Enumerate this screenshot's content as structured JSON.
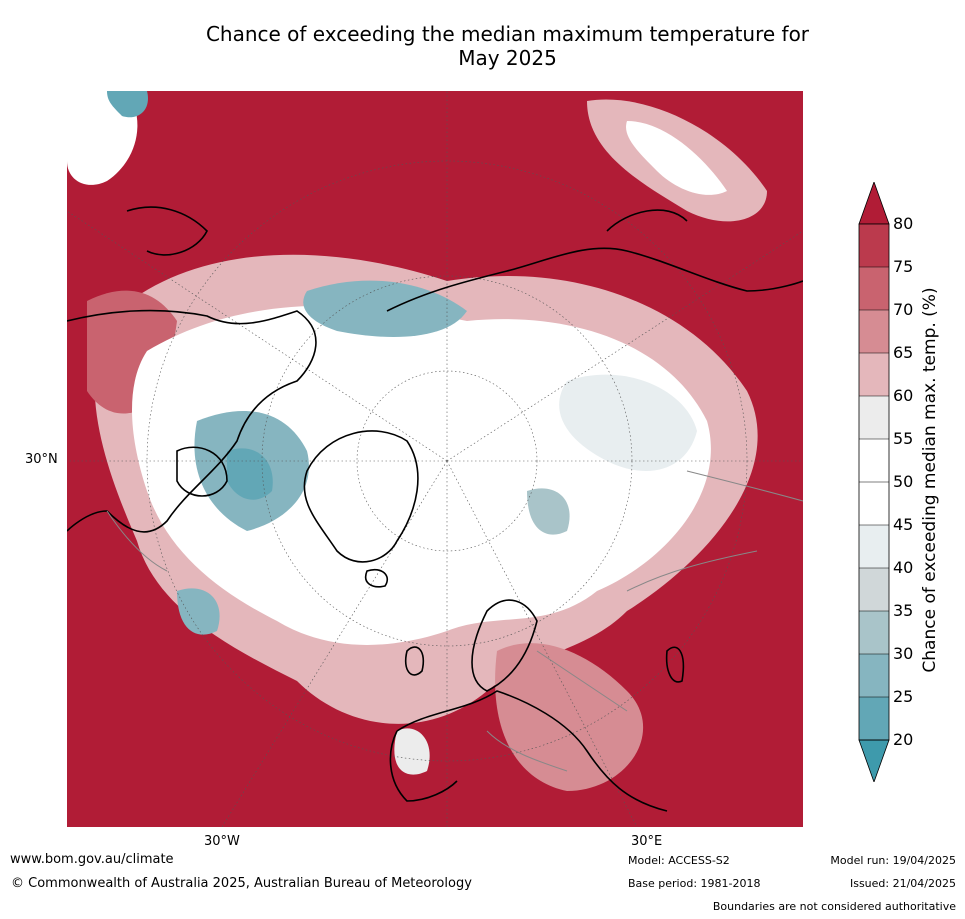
{
  "title": {
    "line1": "Chance of exceeding the median maximum temperature for",
    "line2": "May 2025"
  },
  "map": {
    "projection": "north polar stereographic",
    "lat_label": "30°N",
    "lon_labels": [
      "30°W",
      "30°E"
    ],
    "colors": {
      "ocean_hot": "#b11c36",
      "land_outline": "#000000",
      "borders": "#888888"
    }
  },
  "colorbar": {
    "title": "Chance of exceeding median max. temp. (%)",
    "ticks": [
      "80",
      "75",
      "70",
      "65",
      "60",
      "55",
      "50",
      "45",
      "40",
      "35",
      "30",
      "25",
      "20"
    ],
    "bands": [
      {
        "range": "80+",
        "color": "#b11c36"
      },
      {
        "range": "75-80",
        "color": "#bb3a4d"
      },
      {
        "range": "70-75",
        "color": "#c9636f"
      },
      {
        "range": "65-70",
        "color": "#d68c93"
      },
      {
        "range": "60-65",
        "color": "#e4b7bb"
      },
      {
        "range": "55-60",
        "color": "#ececec"
      },
      {
        "range": "50-55",
        "color": "#ffffff"
      },
      {
        "range": "45-50",
        "color": "#ffffff"
      },
      {
        "range": "40-45",
        "color": "#e8eef0"
      },
      {
        "range": "35-40",
        "color": "#d0d7d9"
      },
      {
        "range": "30-35",
        "color": "#a9c4c9"
      },
      {
        "range": "25-30",
        "color": "#86b5c0"
      },
      {
        "range": "20-25",
        "color": "#62a7b6"
      },
      {
        "range": "<20",
        "color": "#3e9aac"
      }
    ]
  },
  "footer": {
    "website": "www.bom.gov.au/climate",
    "copyright": "© Commonwealth of Australia 2025, Australian Bureau of Meteorology",
    "model": "Model: ACCESS-S2",
    "base_period": "Base period: 1981-2018",
    "model_run": "Model run: 19/04/2025",
    "issued": "Issued: 21/04/2025",
    "disclaimer": "Boundaries are not considered authoritative"
  }
}
